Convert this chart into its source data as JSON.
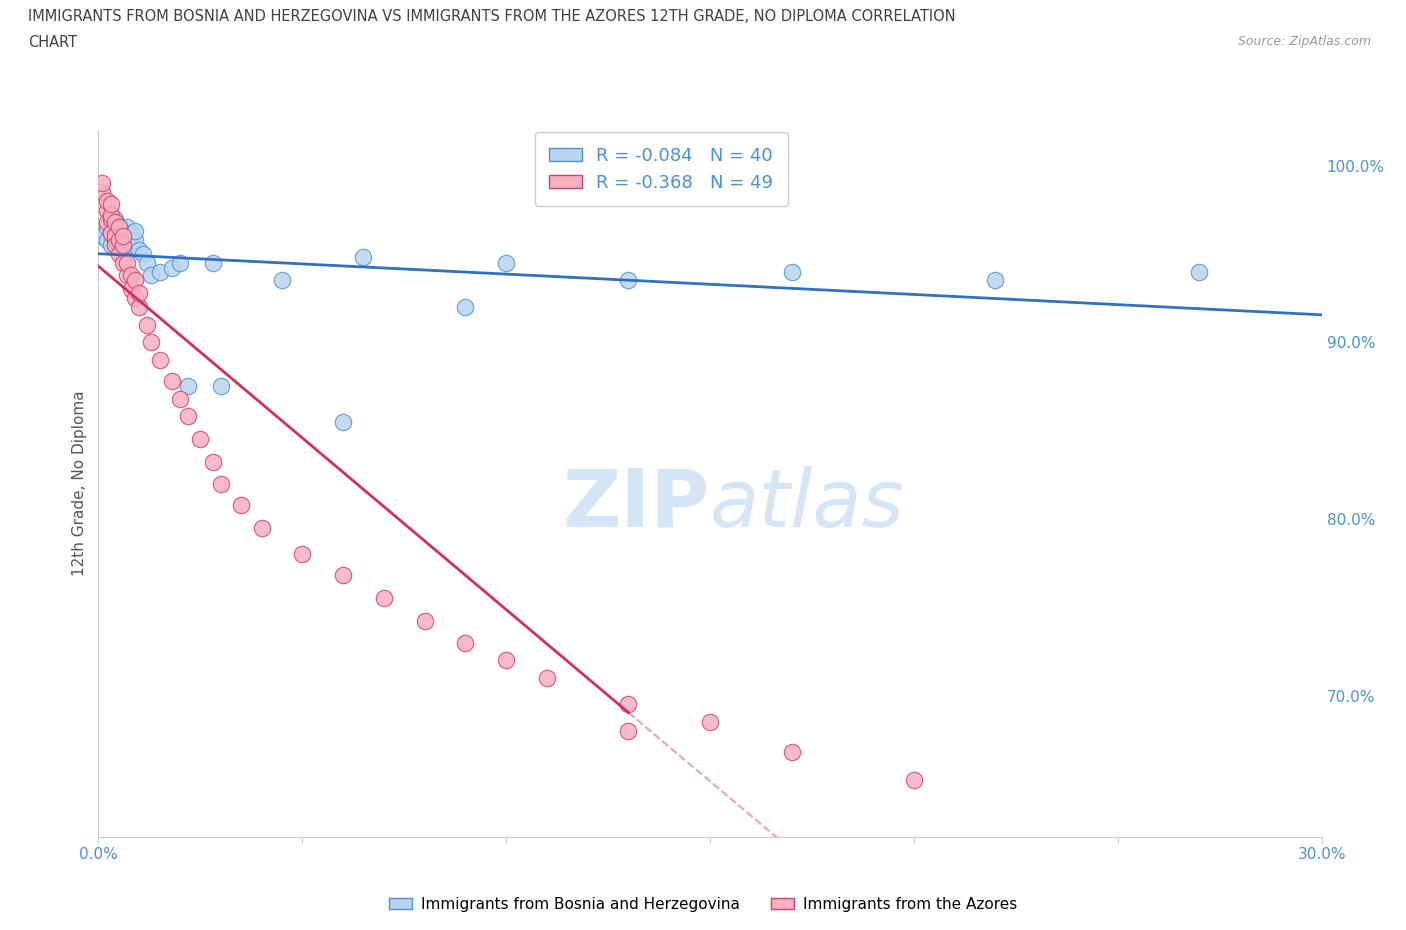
{
  "title_line1": "IMMIGRANTS FROM BOSNIA AND HERZEGOVINA VS IMMIGRANTS FROM THE AZORES 12TH GRADE, NO DIPLOMA CORRELATION",
  "title_line2": "CHART",
  "source": "Source: ZipAtlas.com",
  "ylabel": "12th Grade, No Diploma",
  "xlim": [
    0.0,
    0.3
  ],
  "ylim": [
    0.62,
    1.02
  ],
  "blue_label": "Immigrants from Bosnia and Herzegovina",
  "pink_label": "Immigrants from the Azores",
  "blue_R": -0.084,
  "blue_N": 40,
  "pink_R": -0.368,
  "pink_N": 49,
  "blue_scatter_color": "#b8d4f0",
  "blue_edge_color": "#5090d0",
  "pink_scatter_color": "#f8b0c0",
  "pink_edge_color": "#d04070",
  "blue_line_color": "#3070c0",
  "pink_line_color": "#d03060",
  "background_color": "#ffffff",
  "grid_color": "#e0e8f0",
  "title_color": "#404040",
  "axis_label_color": "#555555",
  "tick_color": "#4a90d9",
  "watermark_color": "#d0e4f4",
  "yticks_right": [
    0.7,
    0.8,
    0.9,
    1.0
  ],
  "yticks_right_labels": [
    "70.0%",
    "80.0%",
    "90.0%",
    "100.0%"
  ],
  "blue_scatter_x": [
    0.001,
    0.002,
    0.002,
    0.003,
    0.003,
    0.003,
    0.004,
    0.004,
    0.004,
    0.005,
    0.005,
    0.005,
    0.006,
    0.006,
    0.007,
    0.007,
    0.007,
    0.008,
    0.008,
    0.009,
    0.009,
    0.01,
    0.011,
    0.012,
    0.013,
    0.015,
    0.018,
    0.02,
    0.022,
    0.028,
    0.03,
    0.045,
    0.06,
    0.065,
    0.09,
    0.1,
    0.13,
    0.17,
    0.22,
    0.27
  ],
  "blue_scatter_y": [
    0.96,
    0.958,
    0.965,
    0.955,
    0.962,
    0.968,
    0.958,
    0.962,
    0.97,
    0.955,
    0.96,
    0.966,
    0.958,
    0.963,
    0.955,
    0.96,
    0.965,
    0.955,
    0.962,
    0.958,
    0.963,
    0.952,
    0.95,
    0.945,
    0.938,
    0.94,
    0.942,
    0.945,
    0.875,
    0.945,
    0.875,
    0.935,
    0.855,
    0.948,
    0.92,
    0.945,
    0.935,
    0.94,
    0.935,
    0.94
  ],
  "pink_scatter_x": [
    0.001,
    0.001,
    0.002,
    0.002,
    0.002,
    0.003,
    0.003,
    0.003,
    0.003,
    0.004,
    0.004,
    0.004,
    0.005,
    0.005,
    0.005,
    0.006,
    0.006,
    0.006,
    0.007,
    0.007,
    0.008,
    0.008,
    0.009,
    0.009,
    0.01,
    0.01,
    0.012,
    0.013,
    0.015,
    0.018,
    0.02,
    0.022,
    0.025,
    0.028,
    0.03,
    0.035,
    0.04,
    0.05,
    0.06,
    0.07,
    0.08,
    0.09,
    0.1,
    0.11,
    0.13,
    0.15,
    0.17,
    0.2,
    0.13
  ],
  "pink_scatter_y": [
    0.985,
    0.99,
    0.975,
    0.98,
    0.968,
    0.97,
    0.962,
    0.972,
    0.978,
    0.96,
    0.968,
    0.955,
    0.958,
    0.95,
    0.965,
    0.945,
    0.955,
    0.96,
    0.938,
    0.945,
    0.93,
    0.938,
    0.925,
    0.935,
    0.92,
    0.928,
    0.91,
    0.9,
    0.89,
    0.878,
    0.868,
    0.858,
    0.845,
    0.832,
    0.82,
    0.808,
    0.795,
    0.78,
    0.768,
    0.755,
    0.742,
    0.73,
    0.72,
    0.71,
    0.695,
    0.685,
    0.668,
    0.652,
    0.68
  ]
}
